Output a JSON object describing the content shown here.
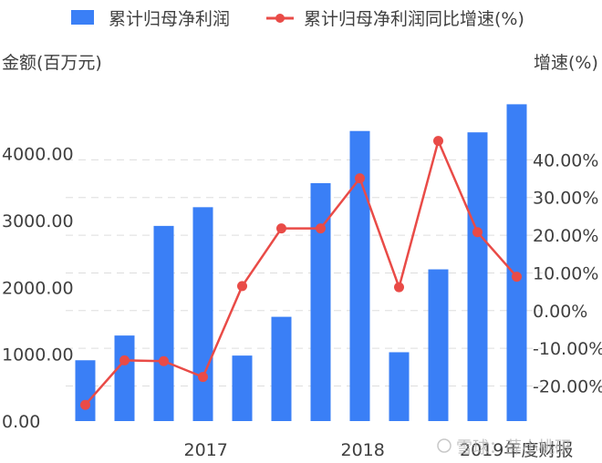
{
  "chart_data": {
    "type": "bar",
    "legend": {
      "placement": "top",
      "bar_label": "累计归母净利润",
      "line_label": "累计归母净利润同比增速(%)"
    },
    "left_axis": {
      "title": "金额(百万元)",
      "tick_values": [
        0,
        1000,
        2000,
        3000,
        4000
      ],
      "tick_labels": [
        "0.00",
        "1000.00",
        "2000.00",
        "3000.00",
        "4000.00"
      ],
      "ylim": [
        0,
        4800
      ]
    },
    "right_axis": {
      "title": "增速(%)",
      "tick_values": [
        -20,
        -10,
        0,
        10,
        20,
        30,
        40
      ],
      "tick_labels": [
        "-20.00%",
        "-10.00%",
        "0.00%",
        "10.00%",
        "20.00%",
        "30.00%",
        "40.00%"
      ],
      "ylim": [
        -29.3,
        55.8
      ]
    },
    "x_labels": [
      "2017",
      "2018",
      "2019年度财报"
    ],
    "x_label_positions": [
      3,
      7,
      11
    ],
    "grid": true,
    "series": [
      {
        "name": "累计归母净利润",
        "type": "bar",
        "color": "#3a7ff6",
        "values": [
          910,
          1280,
          2920,
          3200,
          980,
          1560,
          3560,
          4340,
          1030,
          2270,
          4320,
          4740
        ]
      },
      {
        "name": "累计归母净利润同比增速(%)",
        "type": "line",
        "color": "#e94b47",
        "values": [
          -25.0,
          -13.2,
          -13.4,
          -17.6,
          6.5,
          21.8,
          21.8,
          35.1,
          6.2,
          45.0,
          20.8,
          9.0
        ]
      }
    ]
  },
  "watermark": {
    "text": "雪球：薛小桃研"
  }
}
